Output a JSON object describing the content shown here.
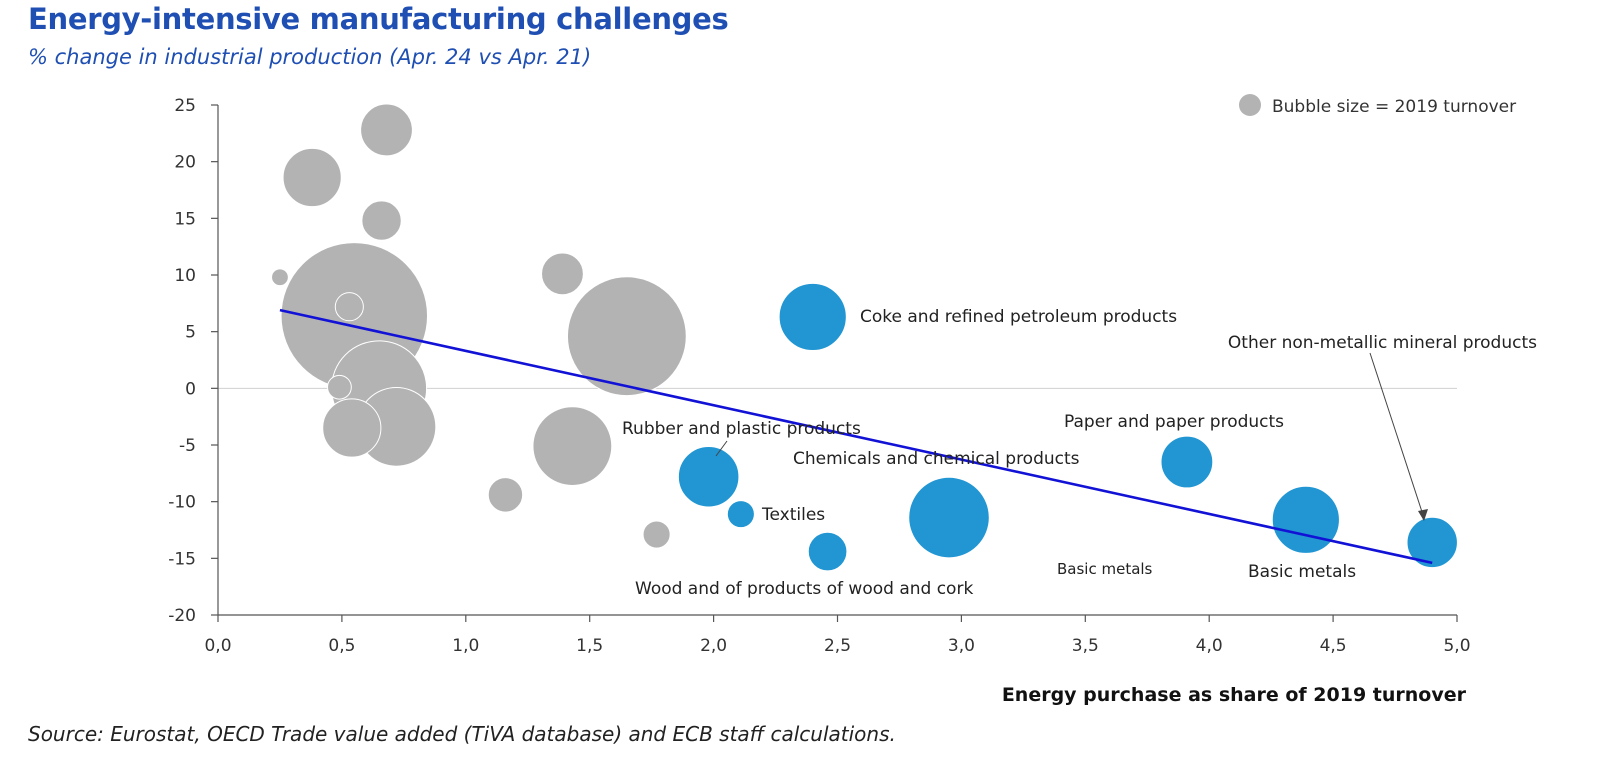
{
  "title": "Energy-intensive manufacturing challenges",
  "subtitle": "% change in industrial production (Apr. 24 vs Apr. 21)",
  "source": "Source: Eurostat, OECD Trade value added (TiVA database) and ECB staff calculations.",
  "colors": {
    "title": "#1f4fb3",
    "grey_bubble": "#b3b3b3",
    "blue_bubble": "#2196d3",
    "trend": "#1212d6"
  },
  "chart_data": {
    "type": "scatter",
    "bubble": true,
    "title": "",
    "xlabel": "Energy purchase as share of 2019 turnover",
    "ylabel": "",
    "xlim": [
      0,
      5
    ],
    "ylim": [
      -20,
      25
    ],
    "x_tick_labels": [
      "0,0",
      "0,5",
      "1,0",
      "1,5",
      "2,0",
      "2,5",
      "3,0",
      "3,5",
      "4,0",
      "4,5",
      "5,0"
    ],
    "y_tick_labels": [
      "25",
      "20",
      "15",
      "10",
      "5",
      "0",
      "-5",
      "-10",
      "-15",
      "-20"
    ],
    "legend": {
      "text": "Bubble size = 2019 turnover",
      "placement": "top-right"
    },
    "series": [
      {
        "color": "grey",
        "points": [
          {
            "x": 0.25,
            "y": 9.8,
            "size": 1.0
          },
          {
            "x": 0.38,
            "y": 18.6,
            "size": 12.0
          },
          {
            "x": 0.68,
            "y": 22.8,
            "size": 9.5
          },
          {
            "x": 0.66,
            "y": 14.8,
            "size": 5.5
          },
          {
            "x": 0.64,
            "y": 10.3,
            "size": 7.0
          },
          {
            "x": 0.55,
            "y": 6.4,
            "size": 76.0
          },
          {
            "x": 0.53,
            "y": 7.2,
            "size": 2.8
          },
          {
            "x": 0.65,
            "y": 0.0,
            "size": 32.0
          },
          {
            "x": 0.49,
            "y": 0.1,
            "size": 2.0
          },
          {
            "x": 0.72,
            "y": -3.4,
            "size": 22.0
          },
          {
            "x": 0.54,
            "y": -3.5,
            "size": 12.0
          },
          {
            "x": 1.39,
            "y": 10.1,
            "size": 6.2
          },
          {
            "x": 1.65,
            "y": 4.6,
            "size": 50.0
          },
          {
            "x": 1.43,
            "y": -5.1,
            "size": 22.0
          },
          {
            "x": 1.16,
            "y": -9.4,
            "size": 4.2
          },
          {
            "x": 1.77,
            "y": -12.9,
            "size": 2.6
          }
        ]
      },
      {
        "color": "blue",
        "points": [
          {
            "x": 2.4,
            "y": 6.3,
            "size": 16.0,
            "label": "Coke and refined petroleum products"
          },
          {
            "x": 1.98,
            "y": -7.8,
            "size": 13.0,
            "label": "Rubber and plastic products"
          },
          {
            "x": 2.11,
            "y": -11.1,
            "size": 2.6,
            "label": "Textiles"
          },
          {
            "x": 2.46,
            "y": -14.4,
            "size": 5.3,
            "label": "Wood and of products of wood and cork"
          },
          {
            "x": 2.95,
            "y": -11.4,
            "size": 23.0,
            "label": "Chemicals and chemical products"
          },
          {
            "x": 3.91,
            "y": -6.5,
            "size": 9.5,
            "label": "Paper and paper products"
          },
          {
            "x": 4.39,
            "y": -11.6,
            "size": 16.0,
            "label": "Basic metals"
          },
          {
            "x": 4.9,
            "y": -13.6,
            "size": 9.0,
            "label": "Other non-metallic mineral products"
          }
        ]
      }
    ],
    "trendline": {
      "x": [
        0.25,
        4.9
      ],
      "y": [
        6.9,
        -15.4
      ]
    },
    "annotations": [
      "Basic metals"
    ]
  }
}
